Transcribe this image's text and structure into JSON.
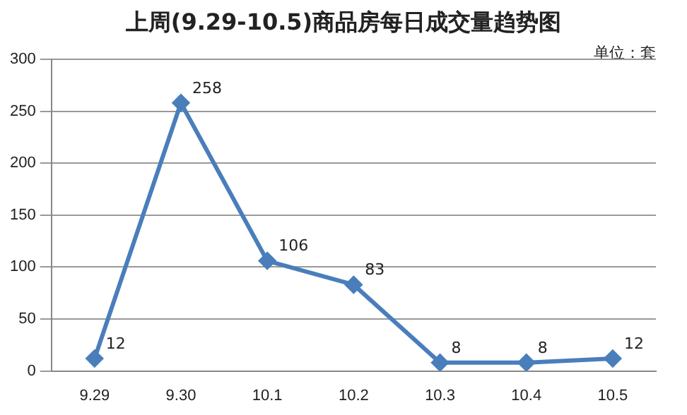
{
  "chart_data": {
    "type": "line",
    "title": "上周(9.29-10.5)商品房每日成交量趋势图",
    "annotations": [
      "单位：套"
    ],
    "categories": [
      "9.29",
      "9.30",
      "10.1",
      "10.2",
      "10.3",
      "10.4",
      "10.5"
    ],
    "series": [
      {
        "color": "#4a7ebb",
        "values": [
          12,
          258,
          106,
          83,
          8,
          8,
          12
        ]
      }
    ],
    "ylim": [
      0,
      300
    ],
    "yticks": [
      0,
      50,
      100,
      150,
      200,
      250,
      300
    ],
    "grid": "y",
    "legend": false,
    "marker": "diamond",
    "line_style": "solid",
    "data_labels": true
  }
}
